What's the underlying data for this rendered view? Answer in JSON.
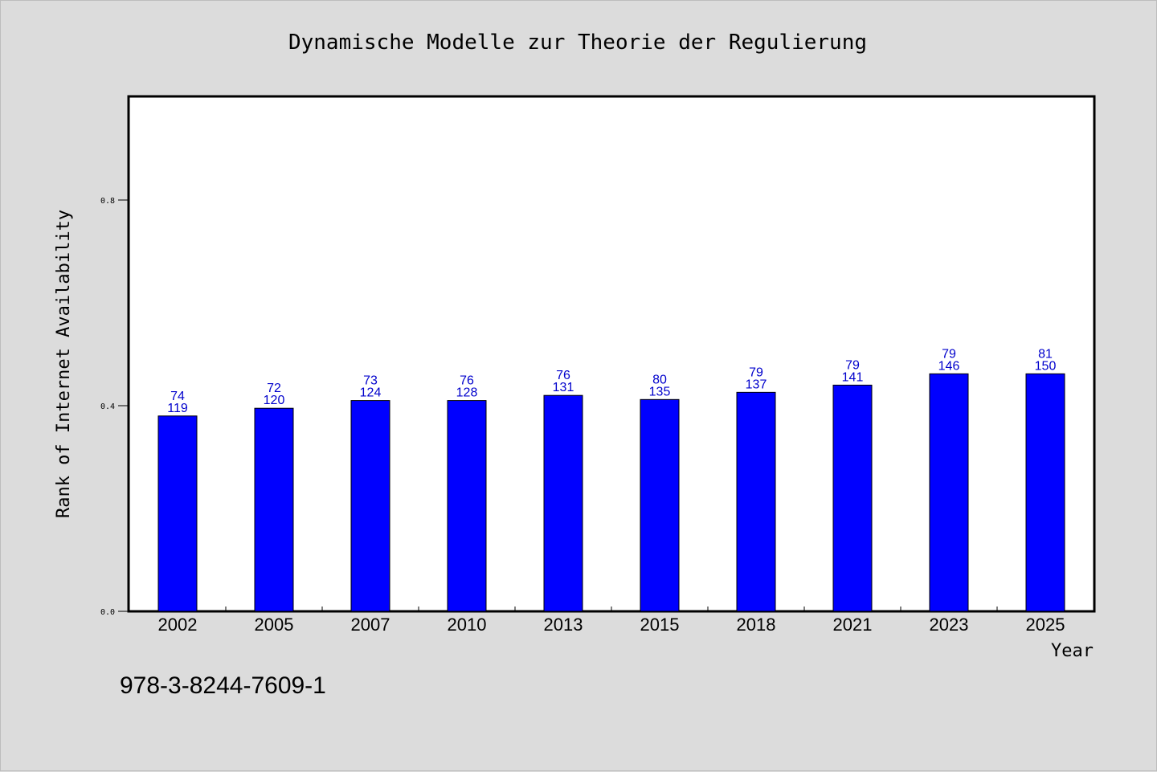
{
  "footer_text": "978-3-8244-7609-1",
  "chart_data": {
    "type": "bar",
    "title": "Dynamische Modelle zur Theorie der Regulierung",
    "xlabel": "Year",
    "ylabel": "Rank of Internet Availability",
    "categories": [
      "2002",
      "2005",
      "2007",
      "2010",
      "2013",
      "2015",
      "2018",
      "2021",
      "2023",
      "2025"
    ],
    "series": [
      {
        "values": [
          0.38,
          0.395,
          0.41,
          0.41,
          0.42,
          0.412,
          0.426,
          0.44,
          0.462,
          0.462
        ],
        "color": "#0000ff"
      }
    ],
    "bar_labels_top": [
      "74",
      "72",
      "73",
      "76",
      "76",
      "80",
      "79",
      "79",
      "79",
      "81"
    ],
    "bar_labels_bottom": [
      "119",
      "120",
      "124",
      "128",
      "131",
      "135",
      "137",
      "141",
      "146",
      "150"
    ],
    "ylim": [
      0,
      1.0
    ],
    "yticks": [
      0.0,
      0.4,
      0.8
    ],
    "ytick_labels": [
      "0.0",
      "0.4",
      "0.8"
    ],
    "grid": false,
    "background": "#dcdcdc",
    "plot_background": "#ffffff",
    "label_color": "#0000cc"
  }
}
